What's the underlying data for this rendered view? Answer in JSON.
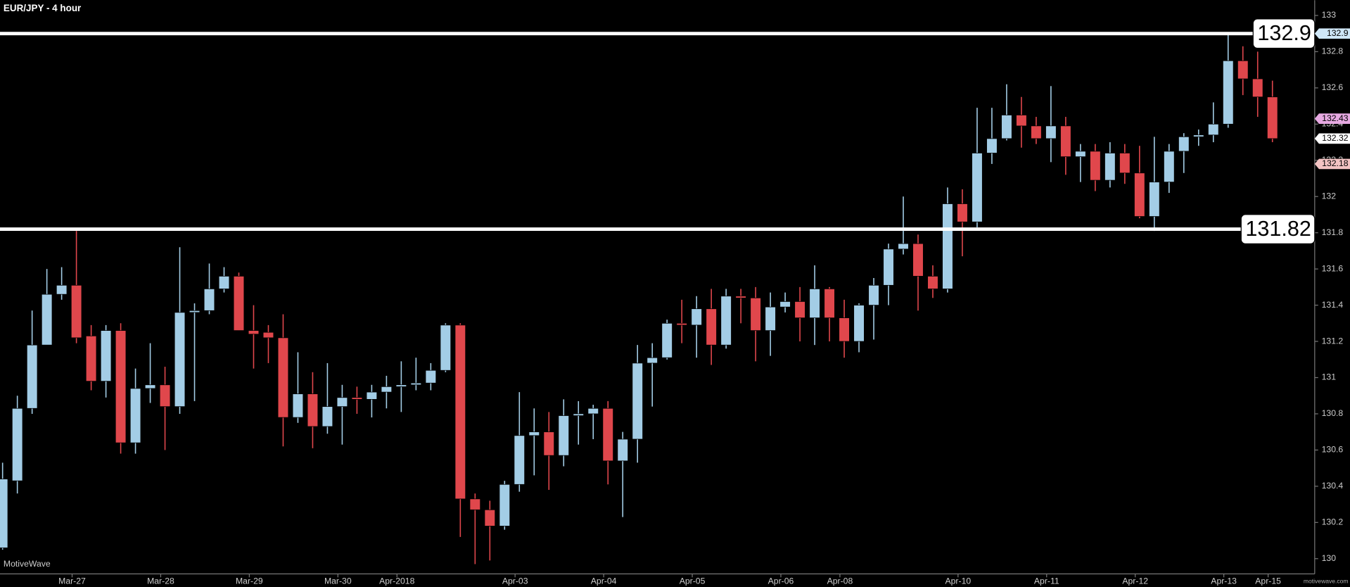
{
  "chart_data": {
    "type": "candlestick",
    "title": "EUR/JPY - 4 hour",
    "watermark": "MotiveWave",
    "footer": "motivewave.com",
    "up_color": "#a3cde6",
    "down_color": "#e0474c",
    "categories": [
      null,
      null,
      null,
      null,
      null,
      "Mar-27",
      null,
      null,
      null,
      null,
      null,
      "Mar-28",
      null,
      null,
      null,
      null,
      null,
      "Mar-29",
      null,
      null,
      null,
      null,
      null,
      "Mar-30",
      null,
      null,
      null,
      "Apr-2018",
      null,
      null,
      null,
      null,
      null,
      null,
      null,
      "Apr-03",
      null,
      null,
      null,
      null,
      null,
      "Apr-04",
      null,
      null,
      null,
      null,
      null,
      "Apr-05",
      null,
      null,
      null,
      null,
      null,
      "Apr-06",
      null,
      null,
      null,
      "Apr-08",
      null,
      null,
      null,
      null,
      null,
      null,
      null,
      "Apr-10",
      null,
      null,
      null,
      null,
      null,
      "Apr-11",
      null,
      null,
      null,
      null,
      null,
      "Apr-12",
      null,
      null,
      null,
      null,
      null,
      "Apr-13",
      null,
      null,
      "Apr-15"
    ],
    "open": [
      130.06,
      130.43,
      130.83,
      131.18,
      131.46,
      131.51,
      131.23,
      130.98,
      131.26,
      130.64,
      130.94,
      130.96,
      130.84,
      131.36,
      131.37,
      131.49,
      131.56,
      131.26,
      131.25,
      131.22,
      130.78,
      130.91,
      130.73,
      130.84,
      130.89,
      130.88,
      130.92,
      130.95,
      130.96,
      130.97,
      131.04,
      131.29,
      130.33,
      130.27,
      130.18,
      130.41,
      130.68,
      130.7,
      130.57,
      130.79,
      130.8,
      130.83,
      130.54,
      130.66,
      131.08,
      131.11,
      131.3,
      131.29,
      131.38,
      131.18,
      131.45,
      131.44,
      131.26,
      131.39,
      131.42,
      131.33,
      131.49,
      131.33,
      131.2,
      131.4,
      131.51,
      131.71,
      131.74,
      131.56,
      131.49,
      131.96,
      131.86,
      132.24,
      132.32,
      132.45,
      132.39,
      132.32,
      132.39,
      132.22,
      132.25,
      132.09,
      132.24,
      132.13,
      131.89,
      132.08,
      132.25,
      132.33,
      132.34,
      132.4,
      132.75,
      132.65,
      132.55
    ],
    "high": [
      130.53,
      130.9,
      131.37,
      131.6,
      131.61,
      131.81,
      131.29,
      131.29,
      131.3,
      131.05,
      131.19,
      131.06,
      131.72,
      131.41,
      131.63,
      131.61,
      131.58,
      131.4,
      131.29,
      131.35,
      131.14,
      131.03,
      131.08,
      130.96,
      130.95,
      130.96,
      131.01,
      131.09,
      131.11,
      131.08,
      131.3,
      131.3,
      130.36,
      130.32,
      130.43,
      130.92,
      130.83,
      130.81,
      130.88,
      130.87,
      130.85,
      130.87,
      130.7,
      131.18,
      131.19,
      131.32,
      131.43,
      131.45,
      131.49,
      131.49,
      131.49,
      131.5,
      131.47,
      131.47,
      131.5,
      131.62,
      131.5,
      131.43,
      131.41,
      131.55,
      131.74,
      132.0,
      131.79,
      131.62,
      132.05,
      132.04,
      132.49,
      132.49,
      132.62,
      132.55,
      132.44,
      132.61,
      132.44,
      132.29,
      132.29,
      132.3,
      132.29,
      132.28,
      132.33,
      132.29,
      132.35,
      132.37,
      132.52,
      132.9,
      132.83,
      132.8,
      132.64
    ],
    "low": [
      130.05,
      130.36,
      130.8,
      131.18,
      131.43,
      131.19,
      130.93,
      130.89,
      130.58,
      130.58,
      130.86,
      130.6,
      130.8,
      130.87,
      131.35,
      131.47,
      131.26,
      131.05,
      131.08,
      130.62,
      130.75,
      130.61,
      130.69,
      130.63,
      130.8,
      130.78,
      130.83,
      130.81,
      130.93,
      130.93,
      131.03,
      130.12,
      129.97,
      129.99,
      130.16,
      130.37,
      130.46,
      130.38,
      130.51,
      130.63,
      130.66,
      130.41,
      130.23,
      130.53,
      130.84,
      131.1,
      131.19,
      131.11,
      131.07,
      131.16,
      131.3,
      131.09,
      131.12,
      131.36,
      131.2,
      131.18,
      131.2,
      131.11,
      131.14,
      131.21,
      131.4,
      131.68,
      131.37,
      131.44,
      131.47,
      131.67,
      131.83,
      132.18,
      132.31,
      132.27,
      132.29,
      132.19,
      132.12,
      132.08,
      132.03,
      132.05,
      132.07,
      131.88,
      131.81,
      132.02,
      132.13,
      132.28,
      132.3,
      132.38,
      132.56,
      132.44,
      132.3
    ],
    "close": [
      130.44,
      130.83,
      131.18,
      131.46,
      131.51,
      131.22,
      130.98,
      131.26,
      130.64,
      130.94,
      130.96,
      130.84,
      131.36,
      131.37,
      131.49,
      131.56,
      131.26,
      131.24,
      131.22,
      130.78,
      130.91,
      130.73,
      130.84,
      130.89,
      130.88,
      130.92,
      130.95,
      130.96,
      130.97,
      131.04,
      131.29,
      130.33,
      130.27,
      130.18,
      130.41,
      130.68,
      130.7,
      130.57,
      130.79,
      130.8,
      130.83,
      130.54,
      130.66,
      131.08,
      131.11,
      131.3,
      131.29,
      131.38,
      131.18,
      131.45,
      131.44,
      131.26,
      131.39,
      131.42,
      131.33,
      131.49,
      131.33,
      131.2,
      131.4,
      131.51,
      131.71,
      131.74,
      131.56,
      131.49,
      131.96,
      131.86,
      132.24,
      132.32,
      132.45,
      132.39,
      132.32,
      132.39,
      132.22,
      132.25,
      132.09,
      132.24,
      132.13,
      131.89,
      132.08,
      132.25,
      132.33,
      132.34,
      132.4,
      132.75,
      132.65,
      132.55,
      132.32
    ],
    "ylim": [
      129.916,
      133.0843
    ],
    "yticks": [
      130,
      130.2,
      130.4,
      130.6,
      130.8,
      131,
      131.2,
      131.4,
      131.6,
      131.8,
      132,
      132.2,
      132.4,
      132.6,
      132.8,
      133
    ],
    "hlines": [
      132.9,
      131.82
    ],
    "price_tags": [
      {
        "value": 132.9,
        "color": "#cfe7f7"
      },
      {
        "value": 132.43,
        "color": "#e7a9e2"
      },
      {
        "value": 132.32,
        "color": "#ffffff"
      },
      {
        "value": 132.18,
        "color": "#f3c3c3"
      }
    ],
    "grid": false
  }
}
